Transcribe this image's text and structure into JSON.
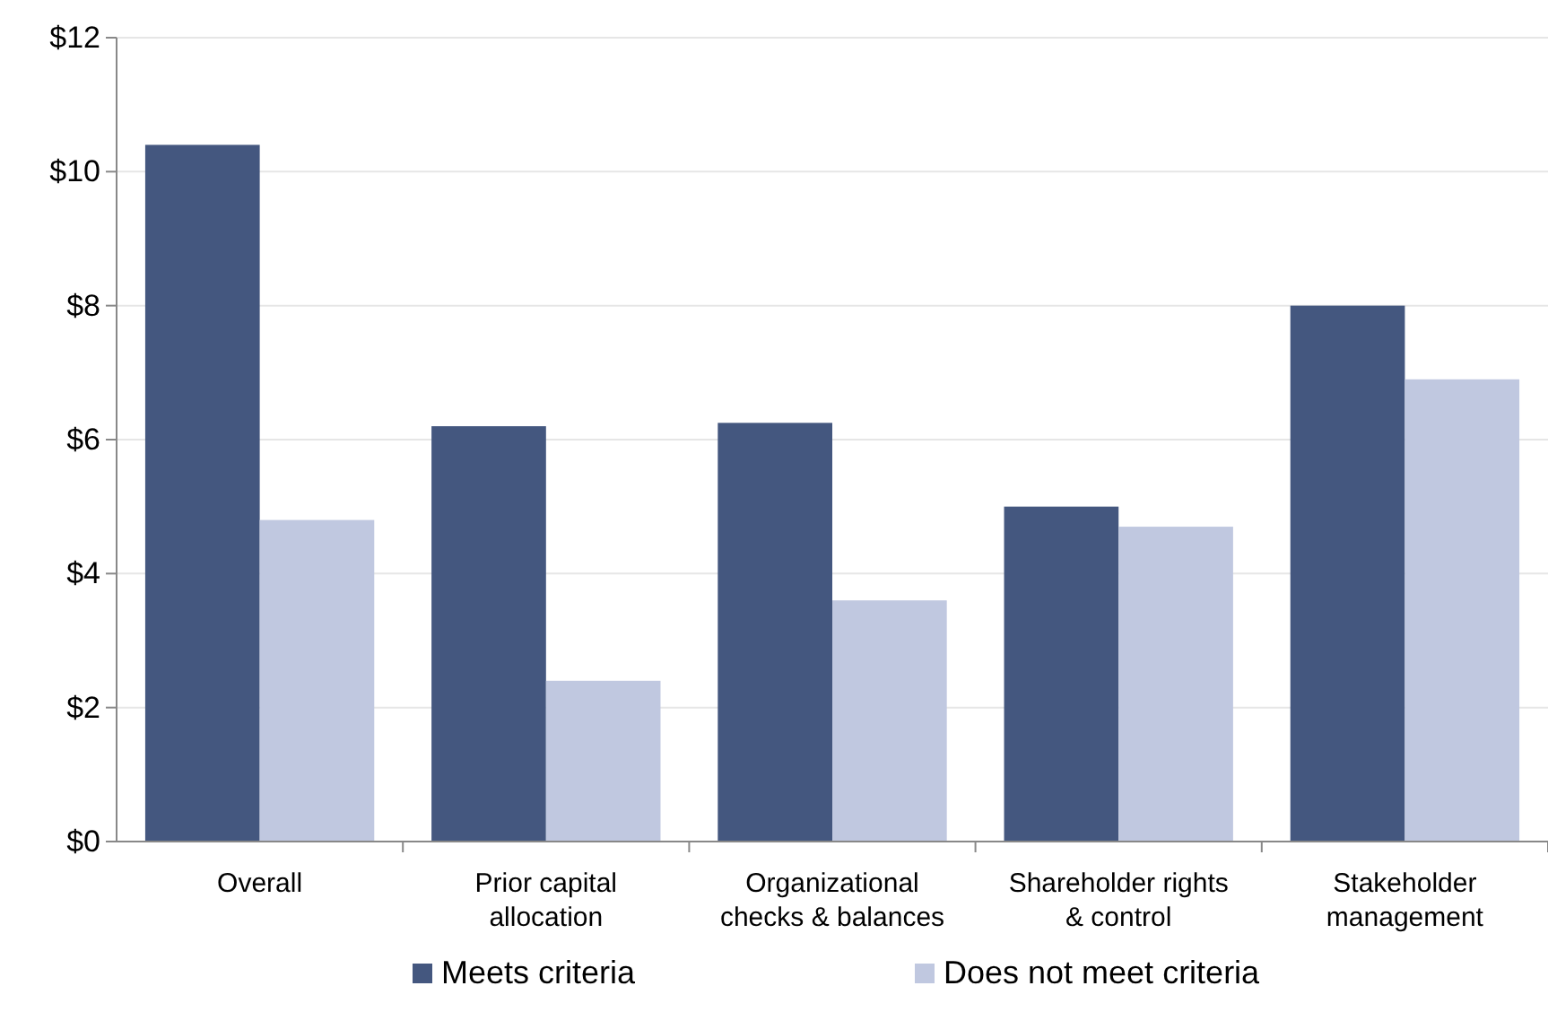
{
  "chart_data": {
    "type": "bar",
    "categories": [
      "Overall",
      "Prior capital\nallocation",
      "Organizational\nchecks & balances",
      "Shareholder rights\n& control",
      "Stakeholder\nmanagement"
    ],
    "series": [
      {
        "name": "Meets criteria",
        "color": "#44577f",
        "values": [
          10.4,
          6.2,
          6.25,
          5.0,
          8.0
        ]
      },
      {
        "name": "Does not meet criteria",
        "color": "#c0c8e0",
        "values": [
          4.8,
          2.4,
          3.6,
          4.7,
          6.9
        ]
      }
    ],
    "ylim": [
      0,
      12
    ],
    "yticks": [
      {
        "value": 0,
        "label": "$0"
      },
      {
        "value": 2,
        "label": "$2"
      },
      {
        "value": 4,
        "label": "$4"
      },
      {
        "value": 6,
        "label": "$6"
      },
      {
        "value": 8,
        "label": "$8"
      },
      {
        "value": 10,
        "label": "$10"
      },
      {
        "value": 12,
        "label": "$12"
      }
    ],
    "grid": "y",
    "legend": "bottom"
  }
}
